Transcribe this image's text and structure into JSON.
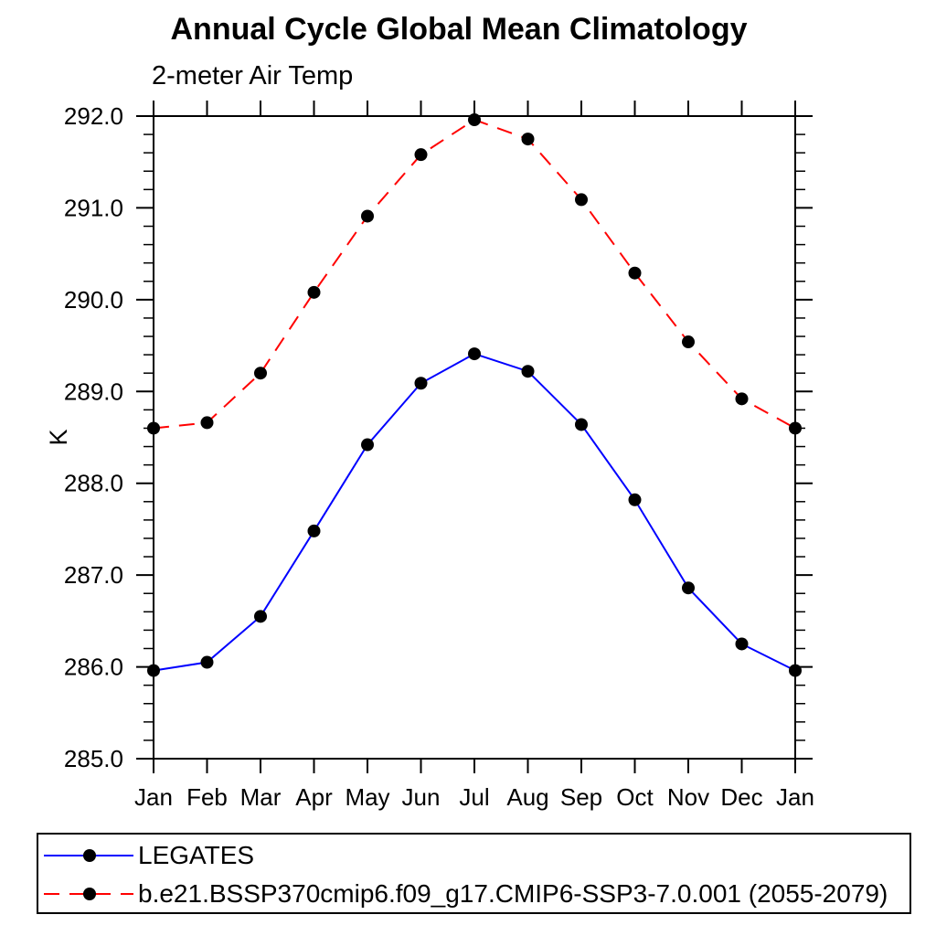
{
  "page": {
    "background": "#ffffff",
    "text_color": "#000000"
  },
  "chart_data": {
    "type": "line",
    "title": "Annual Cycle Global Mean Climatology",
    "subtitle": "2-meter Air Temp",
    "ylabel": "K",
    "xlabel": "",
    "ylim": [
      285.0,
      292.0
    ],
    "ytick_step_major": 1.0,
    "ytick_step_minor": 0.2,
    "ytick_labels": [
      "285.0",
      "286.0",
      "287.0",
      "288.0",
      "289.0",
      "290.0",
      "291.0",
      "292.0"
    ],
    "categories": [
      "Jan",
      "Feb",
      "Mar",
      "Apr",
      "May",
      "Jun",
      "Jul",
      "Aug",
      "Sep",
      "Oct",
      "Nov",
      "Dec",
      "Jan"
    ],
    "grid": false,
    "legend_position": "bottom",
    "axis_color": "#000000",
    "marker": "filled-circle",
    "marker_color": "#000000",
    "series": [
      {
        "name": "LEGATES",
        "color": "#0000ff",
        "style": "solid",
        "values": [
          285.96,
          286.05,
          286.55,
          287.48,
          288.42,
          289.09,
          289.41,
          289.22,
          288.64,
          287.82,
          286.86,
          286.25,
          285.96
        ]
      },
      {
        "name": "b.e21.BSSP370cmip6.f09_g17.CMIP6-SSP3-7.0.001 (2055-2079)",
        "color": "#ff0000",
        "style": "dashed",
        "values": [
          288.6,
          288.66,
          289.2,
          290.08,
          290.91,
          291.58,
          291.96,
          291.75,
          291.09,
          290.29,
          289.54,
          288.92,
          288.6
        ]
      }
    ]
  }
}
